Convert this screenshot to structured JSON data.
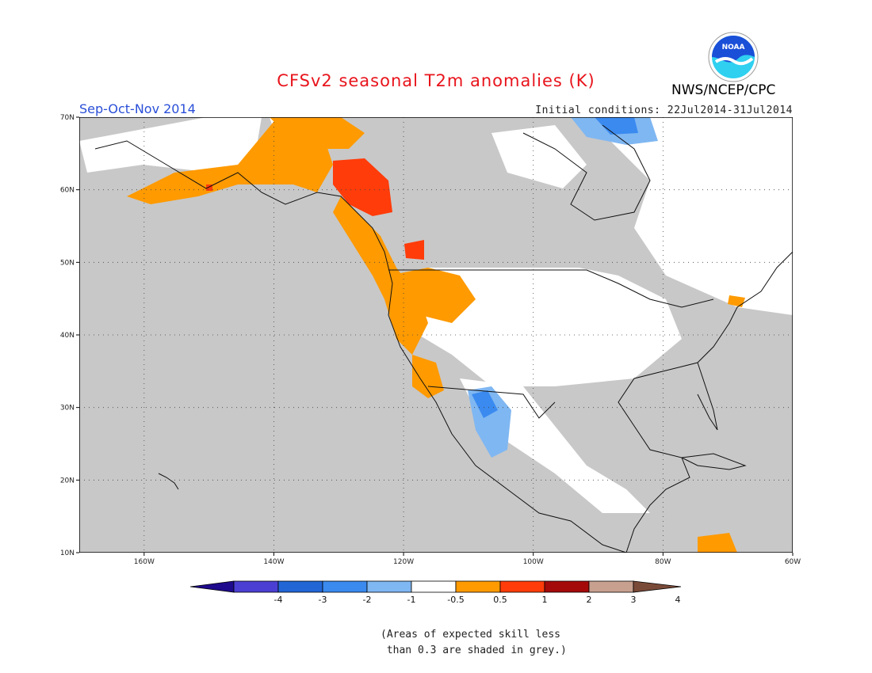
{
  "title": "CFSv2 seasonal T2m anomalies (K)",
  "season": "Sep-Oct-Nov 2014",
  "initial_conditions": "Initial conditions: 22Jul2014-31Jul2014",
  "agency": "NWS/NCEP/CPC",
  "logo": {
    "text": "NOAA",
    "colors": {
      "outer": "#ffffff",
      "top": "#1a4fd8",
      "bottom": "#2fd0f0",
      "gull": "#ffffff"
    }
  },
  "map": {
    "lon_range": [
      -170,
      -60
    ],
    "lat_range": [
      10,
      70
    ],
    "lon_ticks": [
      {
        "lon": -160,
        "label": "160W"
      },
      {
        "lon": -140,
        "label": "140W"
      },
      {
        "lon": -120,
        "label": "120W"
      },
      {
        "lon": -100,
        "label": "100W"
      },
      {
        "lon": -80,
        "label": "80W"
      },
      {
        "lon": -60,
        "label": "60W"
      }
    ],
    "lat_ticks": [
      {
        "lat": 10,
        "label": "10N"
      },
      {
        "lat": 20,
        "label": "20N"
      },
      {
        "lat": 30,
        "label": "30N"
      },
      {
        "lat": 40,
        "label": "40N"
      },
      {
        "lat": 50,
        "label": "50N"
      },
      {
        "lat": 60,
        "label": "60N"
      },
      {
        "lat": 70,
        "label": "70N"
      }
    ],
    "gridlines": "dotted"
  },
  "colorbar": {
    "ticks": [
      "-4",
      "-3",
      "-2",
      "-1",
      "-0.5",
      "0.5",
      "1",
      "2",
      "3",
      "4"
    ],
    "colors": [
      "#1e0a8c",
      "#4a3fd2",
      "#2266d6",
      "#3a8af0",
      "#7fb7f2",
      "#ffffff",
      "#ff9a00",
      "#ff3c0a",
      "#a50a0a",
      "#c8a090",
      "#7a4a38"
    ]
  },
  "note_lines": [
    "(Areas of expected skill less",
    " than 0.3 are shaded in grey.)"
  ],
  "colors": {
    "grey_skill": "#c8c8c8",
    "white": "#ffffff",
    "orange": "#ff9a00",
    "red": "#ff3c0a",
    "blue": "#3a8af0",
    "lightblue": "#7fb7f2",
    "title": "#e8141c",
    "season": "#2a4fd8"
  }
}
